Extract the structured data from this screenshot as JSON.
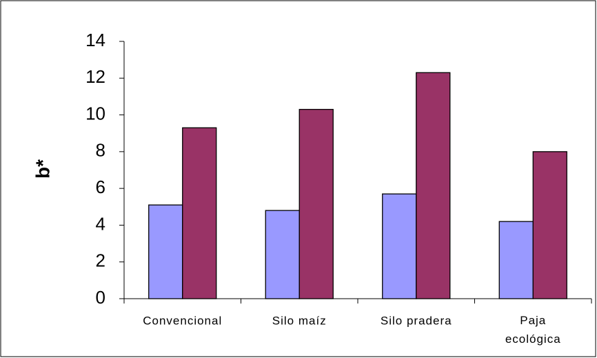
{
  "chart_data": {
    "type": "bar",
    "ylabel": "b*",
    "categories": [
      "Convencional",
      "Silo maíz",
      "Silo pradera",
      "Paja ecológica"
    ],
    "series": [
      {
        "color": "#9999ff",
        "values": [
          5.1,
          4.8,
          5.7,
          4.2
        ]
      },
      {
        "color": "#993366",
        "values": [
          9.3,
          10.3,
          12.3,
          8.0
        ]
      }
    ],
    "ylim": [
      0,
      14
    ],
    "yticks": [
      0,
      2,
      4,
      6,
      8,
      10,
      12,
      14
    ],
    "grid": false
  }
}
